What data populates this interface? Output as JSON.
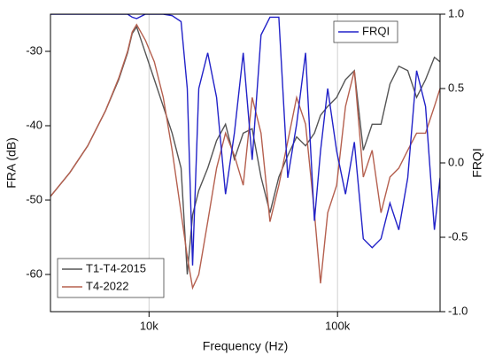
{
  "chart_data": {
    "type": "line",
    "x_label": "Frequency (Hz)",
    "y_label": "FRA (dB)",
    "y2_label": "FRQI",
    "xscale": "log",
    "grid": "x",
    "xlim": [
      3000,
      350000
    ],
    "xticks": [
      {
        "value": 10000,
        "label": "10k"
      },
      {
        "value": 100000,
        "label": "100k"
      }
    ],
    "ylim": [
      -65,
      -25
    ],
    "yticks": [
      -60,
      -50,
      -40,
      -30
    ],
    "y2lim": [
      -1,
      1
    ],
    "y2ticks": [
      {
        "value": -1,
        "label": "-1.0"
      },
      {
        "value": -0.5,
        "label": "-0.5"
      },
      {
        "value": 0,
        "label": "0.0"
      },
      {
        "value": 0.5,
        "label": "0.5"
      },
      {
        "value": 1,
        "label": "1.0"
      }
    ],
    "x": [
      3000,
      3800,
      4730,
      5870,
      6910,
      7700,
      8140,
      8590,
      9570,
      10670,
      11900,
      13260,
      14790,
      15950,
      17030,
      18370,
      20480,
      22820,
      25450,
      28370,
      31620,
      35250,
      39290,
      43800,
      48830,
      54440,
      60690,
      67660,
      75420,
      81300,
      88720,
      98900,
      110200,
      122900,
      137000,
      152700,
      170200,
      189700,
      211500,
      235800,
      262900,
      293000,
      326600,
      350000
    ],
    "series": [
      {
        "name": "T1-T4-2015",
        "color": "#555555",
        "legend": "lower left",
        "values": [
          -49.5,
          -46.3,
          -42.7,
          -38,
          -33.8,
          -30.2,
          -27.6,
          -26.7,
          -30.2,
          -33.8,
          -37.4,
          -41,
          -45.7,
          -60,
          -52,
          -48.7,
          -45.7,
          -42,
          -39.8,
          -44.5,
          -41,
          -40.4,
          -46.9,
          -51.7,
          -46.9,
          -44,
          -41.5,
          -42.7,
          -41,
          -38.6,
          -37.4,
          -36.2,
          -33.8,
          -32.6,
          -43.3,
          -39.8,
          -39.8,
          -34.4,
          -32,
          -32.6,
          -36.2,
          -33.8,
          -30.8,
          -31.4
        ]
      },
      {
        "name": "T4-2022",
        "color": "#b5604f",
        "legend": "lower left",
        "values": [
          -49.5,
          -46.3,
          -42.7,
          -38,
          -33.6,
          -30,
          -27.4,
          -26.4,
          -28.5,
          -31.4,
          -36.2,
          -43.3,
          -51.7,
          -57.6,
          -61.8,
          -60,
          -52.9,
          -45.7,
          -41,
          -44,
          -48,
          -36.2,
          -41,
          -52.9,
          -48,
          -42.1,
          -36.2,
          -39.8,
          -51.7,
          -61.2,
          -51.7,
          -48,
          -37.4,
          -32.6,
          -46.9,
          -43.3,
          -51.7,
          -46.9,
          -45.7,
          -43.3,
          -41,
          -41,
          -37.4,
          -35
        ]
      },
      {
        "name": "FRQI",
        "color": "#2222c8",
        "axis": "y2",
        "legend": "upper right",
        "values": [
          1,
          1,
          1,
          1,
          1,
          1,
          0.98,
          0.97,
          1,
          1,
          1,
          0.99,
          0.95,
          0.5,
          -0.69,
          0.5,
          0.74,
          0.44,
          -0.21,
          0.2,
          0.74,
          0.02,
          0.86,
          0.98,
          0.98,
          -0.1,
          0.26,
          0.74,
          -0.39,
          0.08,
          0.5,
          0.08,
          -0.21,
          0.14,
          -0.51,
          -0.57,
          -0.51,
          -0.27,
          -0.45,
          -0.1,
          0.62,
          0.38,
          -0.45,
          -0.1
        ]
      }
    ]
  }
}
